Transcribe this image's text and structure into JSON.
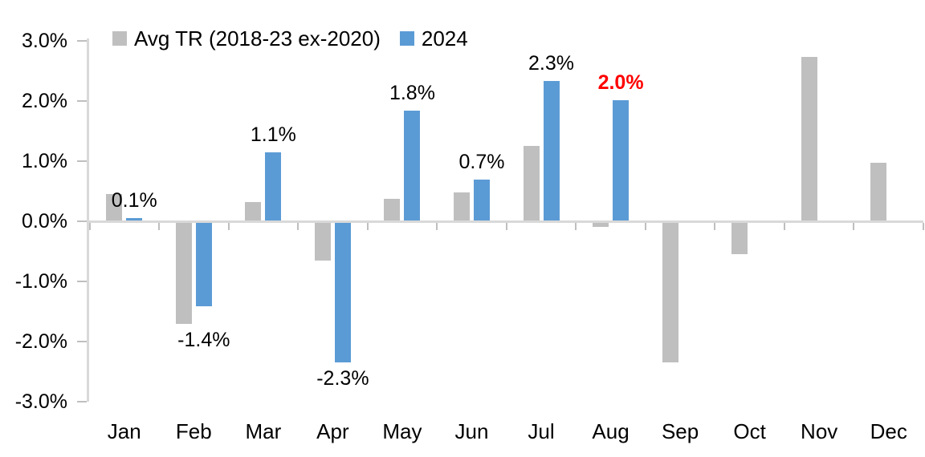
{
  "chart_data": {
    "type": "bar",
    "title": "",
    "categories": [
      "Jan",
      "Feb",
      "Mar",
      "Apr",
      "May",
      "Jun",
      "Jul",
      "Aug",
      "Sep",
      "Oct",
      "Nov",
      "Dec"
    ],
    "series": [
      {
        "name": "Avg TR (2018-23 ex-2020)",
        "color": "#BFBFBF",
        "values": [
          0.45,
          -1.7,
          0.32,
          -0.65,
          0.38,
          0.48,
          1.26,
          -0.09,
          -2.35,
          -0.55,
          2.73,
          0.97
        ]
      },
      {
        "name": "2024",
        "color": "#5B9BD5",
        "values": [
          0.05,
          -1.41,
          1.15,
          -2.35,
          1.84,
          0.7,
          2.33,
          2.01,
          null,
          null,
          null,
          null
        ]
      }
    ],
    "data_labels": [
      {
        "category": "Jan",
        "text": "0.1%",
        "color": "#000000",
        "bold": false
      },
      {
        "category": "Feb",
        "text": "-1.4%",
        "color": "#000000",
        "bold": false
      },
      {
        "category": "Mar",
        "text": "1.1%",
        "color": "#000000",
        "bold": false
      },
      {
        "category": "Apr",
        "text": "-2.3%",
        "color": "#000000",
        "bold": false
      },
      {
        "category": "May",
        "text": "1.8%",
        "color": "#000000",
        "bold": false
      },
      {
        "category": "Jun",
        "text": "0.7%",
        "color": "#000000",
        "bold": false
      },
      {
        "category": "Jul",
        "text": "2.3%",
        "color": "#000000",
        "bold": false
      },
      {
        "category": "Aug",
        "text": "2.0%",
        "color": "#FF0000",
        "bold": true
      }
    ],
    "yaxis": {
      "tick_labels": [
        "3.0%",
        "2.0%",
        "1.0%",
        "0.0%",
        "-1.0%",
        "-2.0%",
        "-3.0%"
      ],
      "tick_values": [
        3,
        2,
        1,
        0,
        -1,
        -2,
        -3
      ],
      "ylim": [
        -3,
        3
      ]
    },
    "legend": {
      "position": "top",
      "entries": [
        {
          "label": "Avg TR (2018-23 ex-2020)",
          "color": "#BFBFBF"
        },
        {
          "label": "2024",
          "color": "#5B9BD5"
        }
      ]
    },
    "grid": false,
    "axis_color": "#D9D9D9",
    "tick_color": "#BFBFBF",
    "background": "#FFFFFF"
  }
}
